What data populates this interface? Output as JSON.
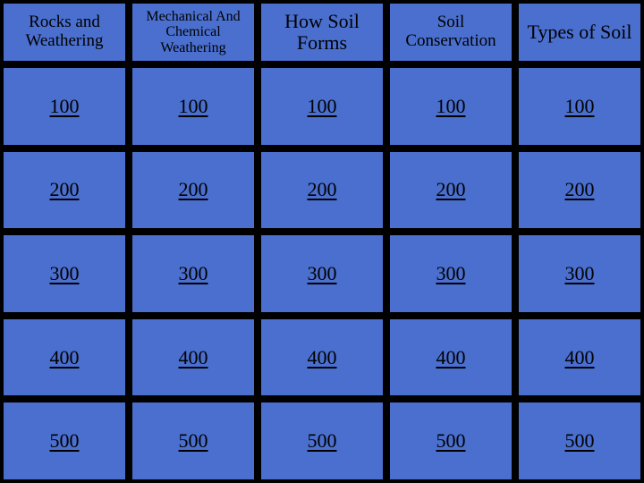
{
  "board": {
    "type": "table",
    "columns": 5,
    "value_rows": 5,
    "background_color": "#000000",
    "cell_color": "#4a6fce",
    "text_color": "#000000",
    "border_color": "#000000",
    "categories": [
      {
        "id": "c0",
        "label": "Rocks and Weathering",
        "fontsize": 19
      },
      {
        "id": "c1",
        "label": "Mechanical And Chemical Weathering",
        "fontsize": 16
      },
      {
        "id": "c2",
        "label": "How Soil Forms",
        "fontsize": 22
      },
      {
        "id": "c3",
        "label": "Soil Conservation",
        "fontsize": 19
      },
      {
        "id": "c4",
        "label": "Types of Soil",
        "fontsize": 22
      }
    ],
    "values": [
      100,
      200,
      300,
      400,
      500
    ],
    "value_fontsize": 22,
    "value_underlined": true
  }
}
